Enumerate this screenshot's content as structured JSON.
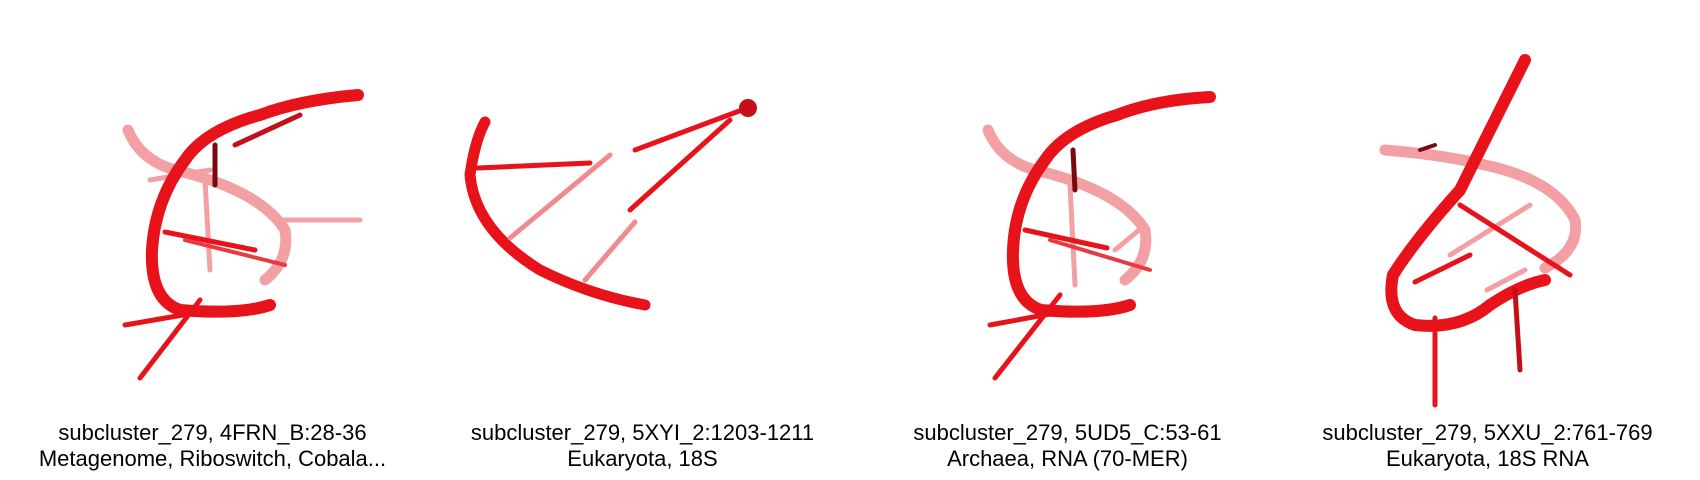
{
  "panels": [
    {
      "title": "subcluster_279, 4FRN_B:28-36",
      "subtitle": "Metagenome, Riboswitch, Cobala..."
    },
    {
      "title": "subcluster_279, 5XYI_2:1203-1211",
      "subtitle": "Eukaryota, 18S"
    },
    {
      "title": "subcluster_279, 5UD5_C:53-61",
      "subtitle": "Archaea, RNA (70-MER)"
    },
    {
      "title": "subcluster_279, 5XXU_2:761-769",
      "subtitle": "Eukaryota, 18S RNA"
    }
  ],
  "colors": {
    "structure": "#e8121b",
    "structure_dark": "#7a0a0e",
    "structure_faded": "#f2a0a3"
  },
  "icons": [
    "rna-structure-render"
  ]
}
